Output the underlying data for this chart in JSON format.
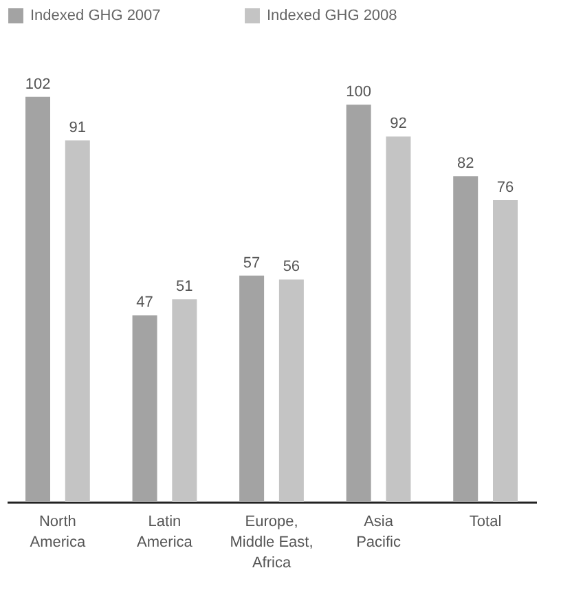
{
  "chart_data": {
    "type": "bar",
    "categories": [
      "North\nAmerica",
      "Latin\nAmerica",
      "Europe,\nMiddle East,\nAfrica",
      "Asia\nPacific",
      "Total"
    ],
    "series": [
      {
        "name": "Indexed GHG 2007",
        "color": "#a3a3a3",
        "values": [
          102,
          47,
          57,
          100,
          82
        ]
      },
      {
        "name": "Indexed GHG 2008",
        "color": "#c4c4c4",
        "values": [
          91,
          51,
          56,
          92,
          76
        ]
      }
    ],
    "data_labels": true,
    "legend": "top left"
  }
}
